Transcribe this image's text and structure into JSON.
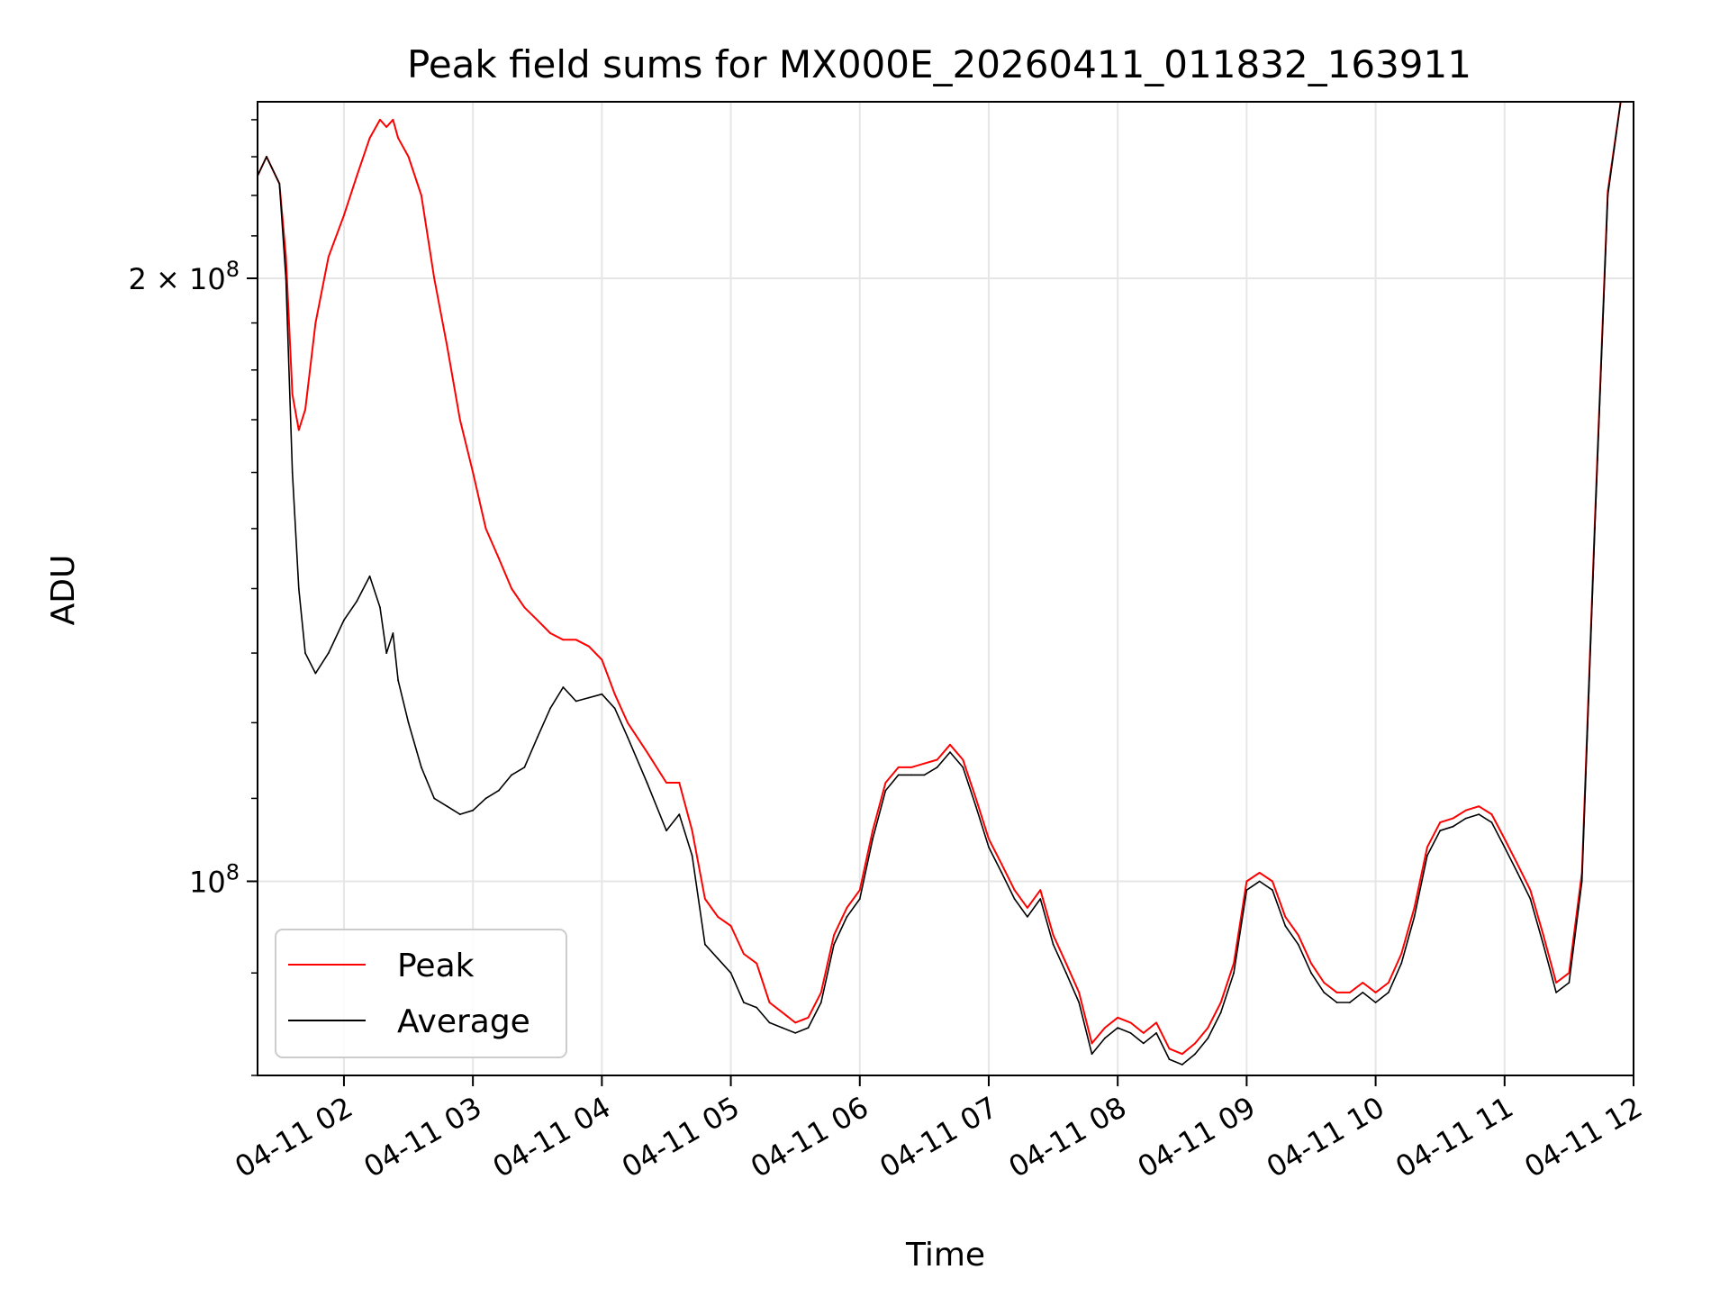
{
  "chart_data": {
    "type": "line",
    "title": "Peak field sums for MX000E_20260411_011832_163911",
    "xlabel": "Time",
    "ylabel": "ADU",
    "yscale": "log",
    "grid": true,
    "legend_position": "lower-left",
    "xlim": [
      1.33,
      12.0
    ],
    "ylim": [
      80000000,
      245000000
    ],
    "x_ticks": [
      {
        "value": 2,
        "label": "04-11 02"
      },
      {
        "value": 3,
        "label": "04-11 03"
      },
      {
        "value": 4,
        "label": "04-11 04"
      },
      {
        "value": 5,
        "label": "04-11 05"
      },
      {
        "value": 6,
        "label": "04-11 06"
      },
      {
        "value": 7,
        "label": "04-11 07"
      },
      {
        "value": 8,
        "label": "04-11 08"
      },
      {
        "value": 9,
        "label": "04-11 09"
      },
      {
        "value": 10,
        "label": "04-11 10"
      },
      {
        "value": 11,
        "label": "04-11 11"
      },
      {
        "value": 12,
        "label": "04-11 12"
      }
    ],
    "y_ticks": [
      {
        "value": 100000000,
        "base": "10",
        "exp": "8",
        "label": "10^8"
      },
      {
        "value": 200000000,
        "mant": "2 × ",
        "base": "10",
        "exp": "8",
        "label": "2 × 10^8"
      }
    ],
    "series": [
      {
        "name": "Average",
        "color": "#000000",
        "points": [
          [
            1.33,
            225000000
          ],
          [
            1.4,
            230000000
          ],
          [
            1.5,
            223000000
          ],
          [
            1.55,
            200000000
          ],
          [
            1.6,
            160000000
          ],
          [
            1.65,
            140000000
          ],
          [
            1.7,
            130000000
          ],
          [
            1.78,
            127000000
          ],
          [
            1.88,
            130000000
          ],
          [
            2.0,
            135000000
          ],
          [
            2.1,
            138000000
          ],
          [
            2.2,
            142000000
          ],
          [
            2.28,
            137000000
          ],
          [
            2.33,
            130000000
          ],
          [
            2.38,
            133000000
          ],
          [
            2.42,
            126000000
          ],
          [
            2.5,
            120000000
          ],
          [
            2.6,
            114000000
          ],
          [
            2.7,
            110000000
          ],
          [
            2.8,
            109000000
          ],
          [
            2.9,
            108000000
          ],
          [
            3.0,
            108500000
          ],
          [
            3.1,
            110000000
          ],
          [
            3.2,
            111000000
          ],
          [
            3.3,
            113000000
          ],
          [
            3.4,
            114000000
          ],
          [
            3.5,
            118000000
          ],
          [
            3.6,
            122000000
          ],
          [
            3.7,
            125000000
          ],
          [
            3.8,
            123000000
          ],
          [
            3.9,
            123500000
          ],
          [
            4.0,
            124000000
          ],
          [
            4.1,
            122000000
          ],
          [
            4.2,
            118000000
          ],
          [
            4.35,
            112000000
          ],
          [
            4.5,
            106000000
          ],
          [
            4.6,
            108000000
          ],
          [
            4.7,
            103000000
          ],
          [
            4.8,
            93000000
          ],
          [
            4.9,
            91500000
          ],
          [
            5.0,
            90000000
          ],
          [
            5.1,
            87000000
          ],
          [
            5.2,
            86500000
          ],
          [
            5.3,
            85000000
          ],
          [
            5.4,
            84500000
          ],
          [
            5.5,
            84000000
          ],
          [
            5.6,
            84500000
          ],
          [
            5.7,
            87000000
          ],
          [
            5.8,
            93000000
          ],
          [
            5.9,
            96000000
          ],
          [
            6.0,
            98000000
          ],
          [
            6.1,
            105000000
          ],
          [
            6.2,
            111000000
          ],
          [
            6.3,
            113000000
          ],
          [
            6.4,
            113000000
          ],
          [
            6.5,
            113000000
          ],
          [
            6.6,
            114000000
          ],
          [
            6.7,
            116000000
          ],
          [
            6.8,
            114000000
          ],
          [
            6.9,
            109000000
          ],
          [
            7.0,
            104000000
          ],
          [
            7.1,
            101000000
          ],
          [
            7.2,
            98000000
          ],
          [
            7.3,
            96000000
          ],
          [
            7.4,
            98000000
          ],
          [
            7.5,
            93000000
          ],
          [
            7.6,
            90000000
          ],
          [
            7.7,
            87000000
          ],
          [
            7.8,
            82000000
          ],
          [
            7.9,
            83500000
          ],
          [
            8.0,
            84500000
          ],
          [
            8.1,
            84000000
          ],
          [
            8.2,
            83000000
          ],
          [
            8.3,
            84000000
          ],
          [
            8.4,
            81500000
          ],
          [
            8.5,
            81000000
          ],
          [
            8.6,
            82000000
          ],
          [
            8.7,
            83500000
          ],
          [
            8.8,
            86000000
          ],
          [
            8.9,
            90000000
          ],
          [
            9.0,
            99000000
          ],
          [
            9.1,
            100000000
          ],
          [
            9.2,
            99000000
          ],
          [
            9.3,
            95000000
          ],
          [
            9.4,
            93000000
          ],
          [
            9.5,
            90000000
          ],
          [
            9.6,
            88000000
          ],
          [
            9.7,
            87000000
          ],
          [
            9.8,
            87000000
          ],
          [
            9.9,
            88000000
          ],
          [
            10.0,
            87000000
          ],
          [
            10.1,
            88000000
          ],
          [
            10.2,
            91000000
          ],
          [
            10.3,
            96000000
          ],
          [
            10.4,
            103000000
          ],
          [
            10.5,
            106000000
          ],
          [
            10.6,
            106500000
          ],
          [
            10.7,
            107500000
          ],
          [
            10.8,
            108000000
          ],
          [
            10.9,
            107000000
          ],
          [
            11.0,
            104000000
          ],
          [
            11.1,
            101000000
          ],
          [
            11.2,
            98000000
          ],
          [
            11.3,
            93000000
          ],
          [
            11.4,
            88000000
          ],
          [
            11.5,
            89000000
          ],
          [
            11.6,
            100000000
          ],
          [
            11.7,
            150000000
          ],
          [
            11.8,
            220000000
          ],
          [
            11.9,
            245000000
          ]
        ]
      },
      {
        "name": "Peak",
        "color": "#ff0000",
        "points": [
          [
            1.33,
            225000000
          ],
          [
            1.4,
            230000000
          ],
          [
            1.5,
            223000000
          ],
          [
            1.55,
            205000000
          ],
          [
            1.6,
            175000000
          ],
          [
            1.65,
            168000000
          ],
          [
            1.7,
            172000000
          ],
          [
            1.78,
            190000000
          ],
          [
            1.88,
            205000000
          ],
          [
            2.0,
            215000000
          ],
          [
            2.1,
            225000000
          ],
          [
            2.2,
            235000000
          ],
          [
            2.28,
            240000000
          ],
          [
            2.33,
            238000000
          ],
          [
            2.38,
            240000000
          ],
          [
            2.42,
            235000000
          ],
          [
            2.5,
            230000000
          ],
          [
            2.6,
            220000000
          ],
          [
            2.7,
            200000000
          ],
          [
            2.8,
            185000000
          ],
          [
            2.9,
            170000000
          ],
          [
            3.0,
            160000000
          ],
          [
            3.1,
            150000000
          ],
          [
            3.2,
            145000000
          ],
          [
            3.3,
            140000000
          ],
          [
            3.4,
            137000000
          ],
          [
            3.5,
            135000000
          ],
          [
            3.6,
            133000000
          ],
          [
            3.7,
            132000000
          ],
          [
            3.8,
            132000000
          ],
          [
            3.9,
            131000000
          ],
          [
            4.0,
            129000000
          ],
          [
            4.1,
            124000000
          ],
          [
            4.2,
            120000000
          ],
          [
            4.35,
            116000000
          ],
          [
            4.5,
            112000000
          ],
          [
            4.6,
            112000000
          ],
          [
            4.7,
            106000000
          ],
          [
            4.8,
            98000000
          ],
          [
            4.9,
            96000000
          ],
          [
            5.0,
            95000000
          ],
          [
            5.1,
            92000000
          ],
          [
            5.2,
            91000000
          ],
          [
            5.3,
            87000000
          ],
          [
            5.4,
            86000000
          ],
          [
            5.5,
            85000000
          ],
          [
            5.6,
            85500000
          ],
          [
            5.7,
            88000000
          ],
          [
            5.8,
            94000000
          ],
          [
            5.9,
            97000000
          ],
          [
            6.0,
            99000000
          ],
          [
            6.1,
            106000000
          ],
          [
            6.2,
            112000000
          ],
          [
            6.3,
            114000000
          ],
          [
            6.4,
            114000000
          ],
          [
            6.5,
            114500000
          ],
          [
            6.6,
            115000000
          ],
          [
            6.7,
            117000000
          ],
          [
            6.8,
            115000000
          ],
          [
            6.9,
            110000000
          ],
          [
            7.0,
            105000000
          ],
          [
            7.1,
            102000000
          ],
          [
            7.2,
            99000000
          ],
          [
            7.3,
            97000000
          ],
          [
            7.4,
            99000000
          ],
          [
            7.5,
            94000000
          ],
          [
            7.6,
            91000000
          ],
          [
            7.7,
            88000000
          ],
          [
            7.8,
            83000000
          ],
          [
            7.9,
            84500000
          ],
          [
            8.0,
            85500000
          ],
          [
            8.1,
            85000000
          ],
          [
            8.2,
            84000000
          ],
          [
            8.3,
            85000000
          ],
          [
            8.4,
            82500000
          ],
          [
            8.5,
            82000000
          ],
          [
            8.6,
            83000000
          ],
          [
            8.7,
            84500000
          ],
          [
            8.8,
            87000000
          ],
          [
            8.9,
            91000000
          ],
          [
            9.0,
            100000000
          ],
          [
            9.1,
            101000000
          ],
          [
            9.2,
            100000000
          ],
          [
            9.3,
            96000000
          ],
          [
            9.4,
            94000000
          ],
          [
            9.5,
            91000000
          ],
          [
            9.6,
            89000000
          ],
          [
            9.7,
            88000000
          ],
          [
            9.8,
            88000000
          ],
          [
            9.9,
            89000000
          ],
          [
            10.0,
            88000000
          ],
          [
            10.1,
            89000000
          ],
          [
            10.2,
            92000000
          ],
          [
            10.3,
            97000000
          ],
          [
            10.4,
            104000000
          ],
          [
            10.5,
            107000000
          ],
          [
            10.6,
            107500000
          ],
          [
            10.7,
            108500000
          ],
          [
            10.8,
            109000000
          ],
          [
            10.9,
            108000000
          ],
          [
            11.0,
            105000000
          ],
          [
            11.1,
            102000000
          ],
          [
            11.2,
            99000000
          ],
          [
            11.3,
            94000000
          ],
          [
            11.4,
            89000000
          ],
          [
            11.5,
            90000000
          ],
          [
            11.6,
            101000000
          ],
          [
            11.7,
            151000000
          ],
          [
            11.8,
            221000000
          ],
          [
            11.9,
            245000000
          ]
        ]
      }
    ]
  }
}
